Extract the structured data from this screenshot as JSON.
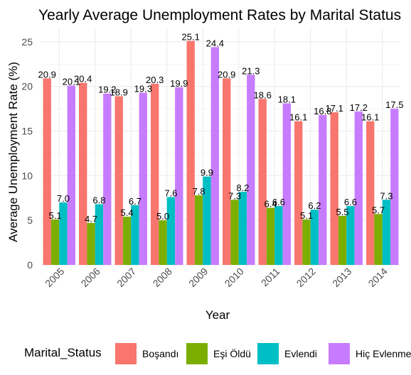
{
  "chart_data": {
    "type": "bar",
    "title": "Yearly Average Unemployment Rates by Marital Status",
    "xlabel": "Year",
    "ylabel": "Average Unemployment Rate (%)",
    "ylim": [
      0,
      26.5
    ],
    "yticks": [
      0,
      5,
      10,
      15,
      20,
      25
    ],
    "grid": true,
    "legend_title": "Marital_Status",
    "legend_position": "bottom",
    "categories": [
      "2005",
      "2006",
      "2007",
      "2008",
      "2009",
      "2010",
      "2011",
      "2012",
      "2013",
      "2014"
    ],
    "series": [
      {
        "name": "Boşandı",
        "color": "#F8766D",
        "values": [
          20.9,
          20.4,
          18.9,
          20.3,
          25.1,
          20.9,
          18.6,
          16.1,
          17.1,
          16.1
        ]
      },
      {
        "name": "Eşi Öldü",
        "color": "#7CAE00",
        "values": [
          5.1,
          4.7,
          5.4,
          5.0,
          7.8,
          7.3,
          6.4,
          5.1,
          5.5,
          5.7
        ]
      },
      {
        "name": "Evlendi",
        "color": "#00BFC4",
        "values": [
          7.0,
          6.8,
          6.7,
          7.6,
          9.9,
          8.2,
          6.6,
          6.2,
          6.6,
          7.3
        ]
      },
      {
        "name": "Hiç Evlenmedi",
        "color": "#C77CFF",
        "values": [
          20.1,
          19.2,
          19.3,
          19.9,
          24.4,
          21.3,
          18.1,
          16.8,
          17.2,
          17.5
        ]
      }
    ]
  }
}
